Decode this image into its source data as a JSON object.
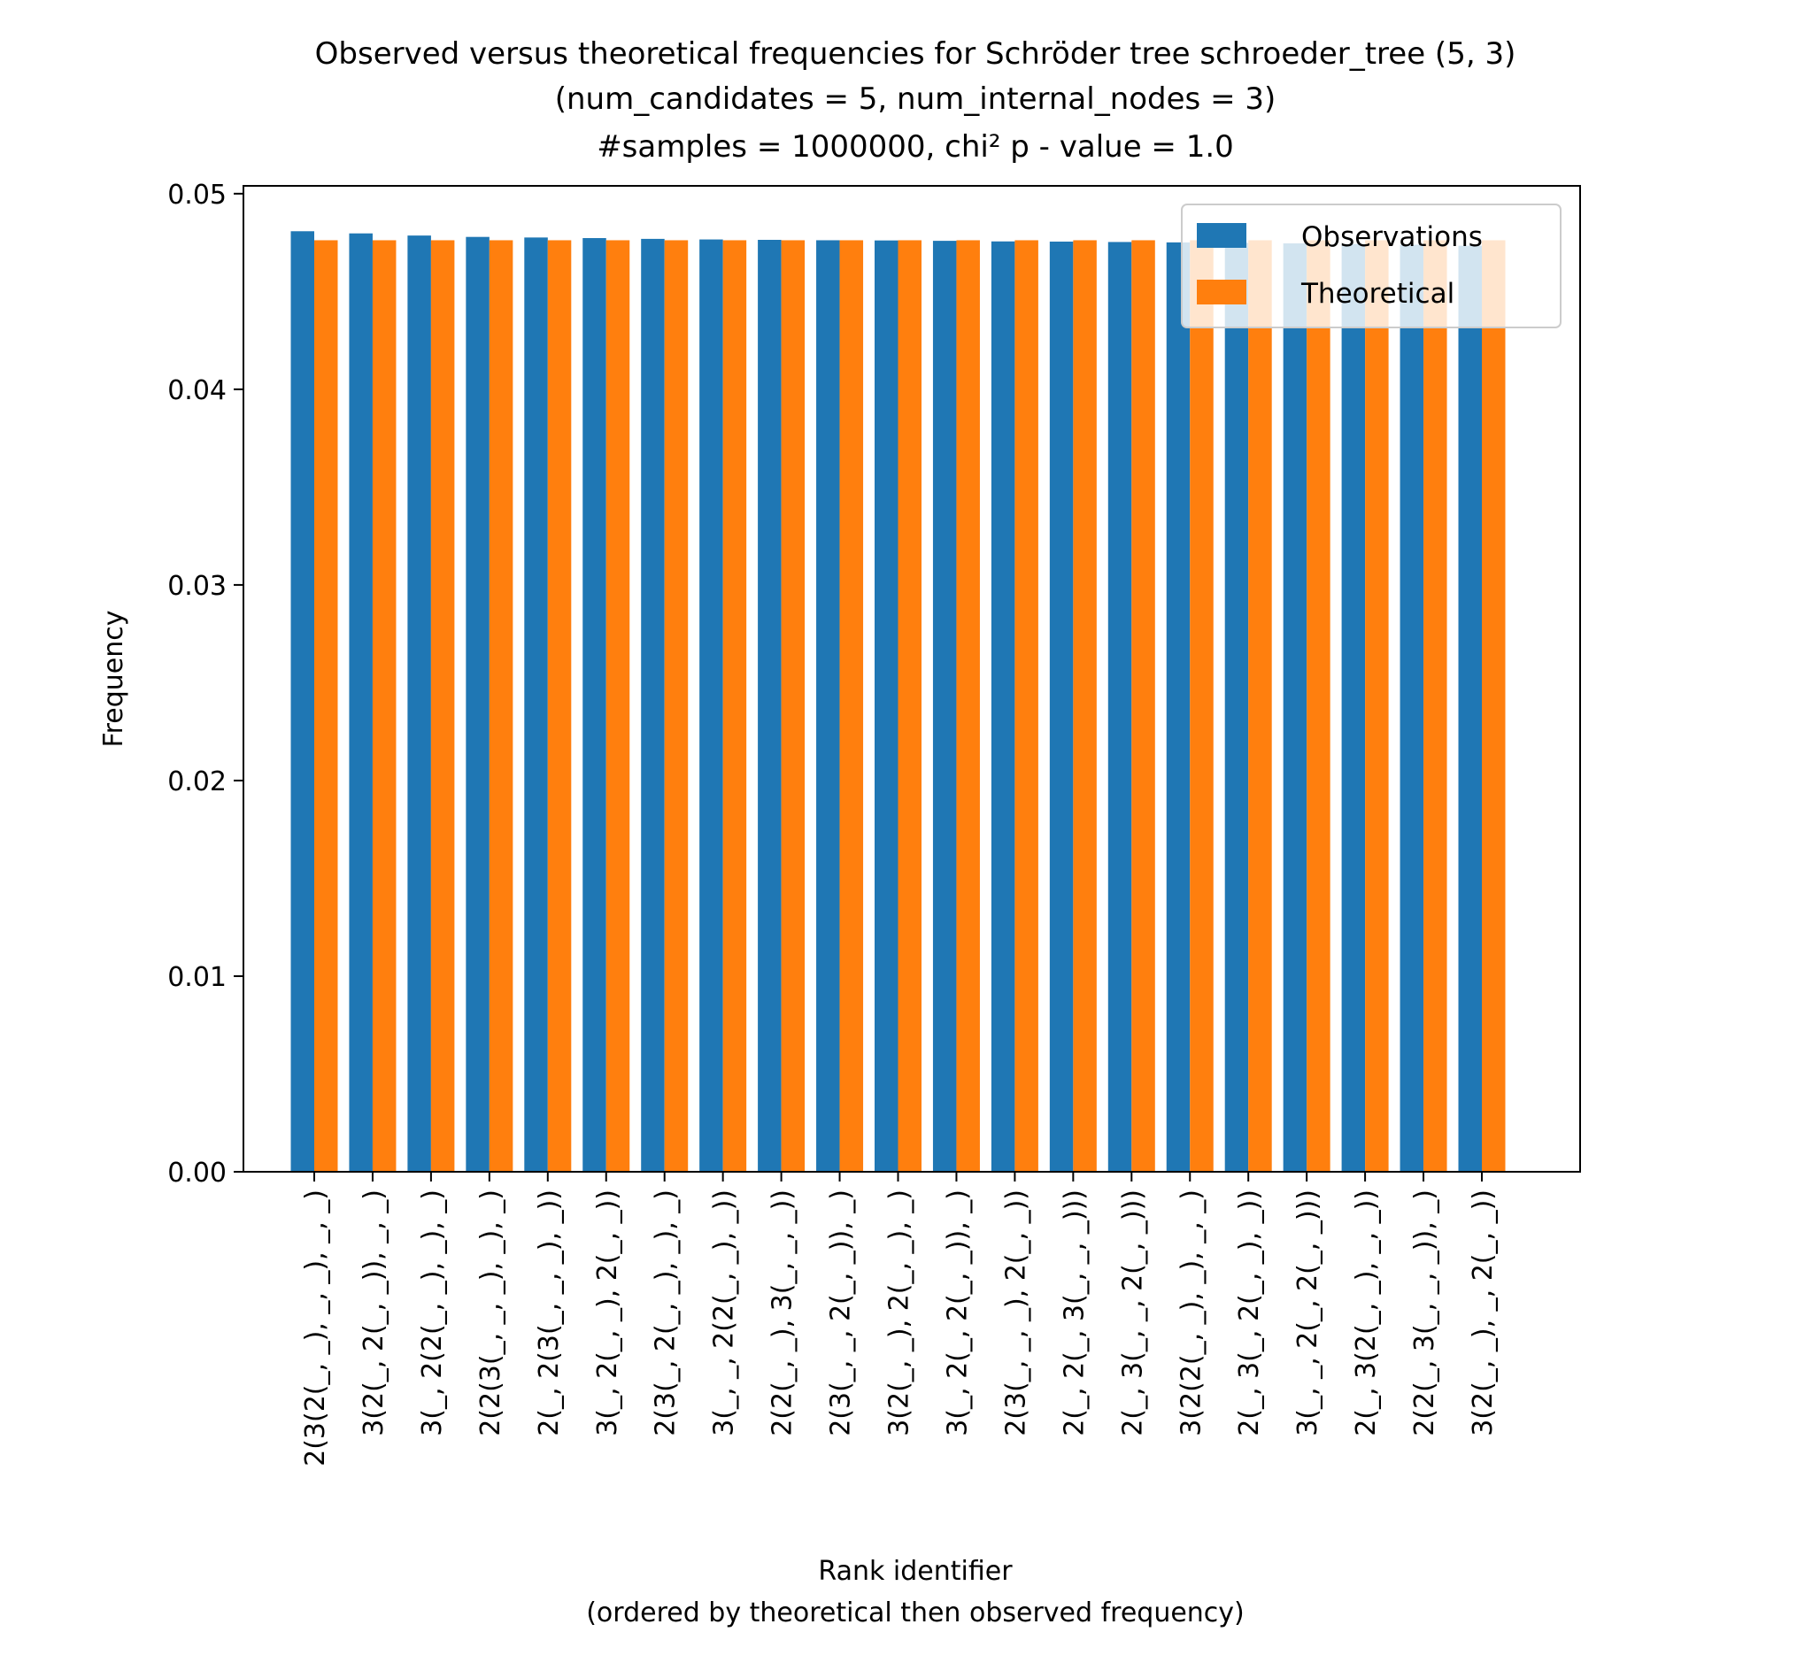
{
  "chart_data": {
    "type": "bar",
    "title": [
      "Observed versus theoretical frequencies for Schröder tree schroeder_tree (5, 3)",
      "(num_candidates = 5, num_internal_nodes = 3)",
      "#samples = 1000000, chi² p - value = 1.0"
    ],
    "xlabel": [
      "Rank identifier",
      "(ordered by theoretical then observed frequency)"
    ],
    "ylabel": "Frequency",
    "ylim": [
      0,
      0.0504
    ],
    "yticks": [
      0.0,
      0.01,
      0.02,
      0.03,
      0.04,
      0.05
    ],
    "ytick_labels": [
      "0.00",
      "0.01",
      "0.02",
      "0.03",
      "0.04",
      "0.05"
    ],
    "grid": false,
    "legend": "top-right",
    "categories": [
      "2(3(2(_, _), _, _), _, _)",
      "3(2(_, 2(_, _)), _, _)",
      "3(_, 2(2(_, _), _), _)",
      "2(2(3(_, _, _), _), _)",
      "2(_, 2(3(_, _, _), _))",
      "3(_, 2(_, _), 2(_, _))",
      "2(3(_, 2(_, _), _), _)",
      "3(_, _, 2(2(_, _), _))",
      "2(2(_, _), 3(_, _, _))",
      "2(3(_, _, 2(_, _)), _)",
      "3(2(_, _), 2(_, _), _)",
      "3(_, 2(_, 2(_, _)), _)",
      "2(3(_, _, _), 2(_, _))",
      "2(_, 2(_, 3(_, _, _)))",
      "2(_, 3(_, _, 2(_, _)))",
      "3(2(2(_, _), _), _, _)",
      "2(_, 3(_, 2(_, _), _))",
      "3(_, _, 2(_, 2(_, _)))",
      "2(_, 3(2(_, _), _, _))",
      "2(2(_, 3(_, _, _)), _)",
      "3(2(_, _), _, 2(_, _))"
    ],
    "series": [
      {
        "name": "Observations",
        "color": "#1f77b4",
        "values": [
          0.04808,
          0.04797,
          0.04786,
          0.04779,
          0.04776,
          0.04773,
          0.04769,
          0.04766,
          0.04764,
          0.04762,
          0.04761,
          0.04759,
          0.04756,
          0.04755,
          0.04753,
          0.04751,
          0.04749,
          0.04746,
          0.04743,
          0.04739,
          0.04734
        ]
      },
      {
        "name": "Theoretical",
        "color": "#ff7f0e",
        "values": [
          0.04762,
          0.04762,
          0.04762,
          0.04762,
          0.04762,
          0.04762,
          0.04762,
          0.04762,
          0.04762,
          0.04762,
          0.04762,
          0.04762,
          0.04762,
          0.04762,
          0.04762,
          0.04762,
          0.04762,
          0.04762,
          0.04762,
          0.04762,
          0.04762
        ]
      }
    ]
  }
}
